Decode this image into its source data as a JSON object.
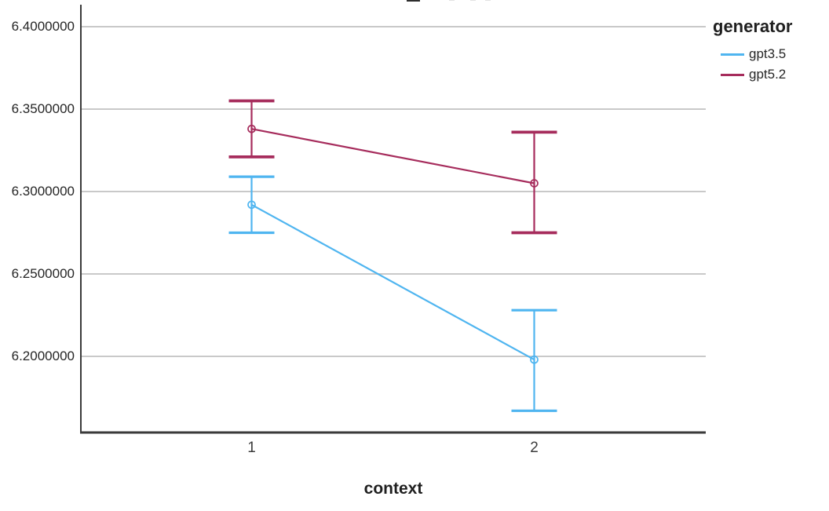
{
  "clipped_title": {
    "visible_fragment": "_"
  },
  "chart_data": {
    "type": "line",
    "subtype": "interaction-plot-with-error-bars",
    "xlabel": "context",
    "categories": [
      "1",
      "2"
    ],
    "y_axis": {
      "ticks": [
        {
          "label": "6.4000000",
          "value": 6.4
        },
        {
          "label": "6.3500000",
          "value": 6.35
        },
        {
          "label": "6.3000000",
          "value": 6.3
        },
        {
          "label": "6.2500000",
          "value": 6.25
        },
        {
          "label": "6.2000000",
          "value": 6.2
        }
      ],
      "range": [
        6.154,
        6.413
      ],
      "grid": true
    },
    "legend": {
      "title": "generator",
      "position": "right",
      "items": [
        "gpt3.5",
        "gpt5.2"
      ]
    },
    "series": [
      {
        "name": "gpt3.5",
        "color": "#4fb5f0",
        "marker": "open-circle",
        "means": [
          6.292,
          6.198
        ],
        "ci_low": [
          6.275,
          6.167
        ],
        "ci_high": [
          6.309,
          6.228
        ]
      },
      {
        "name": "gpt5.2",
        "color": "#a62c5c",
        "marker": "open-circle",
        "means": [
          6.338,
          6.305
        ],
        "ci_low": [
          6.321,
          6.275
        ],
        "ci_high": [
          6.355,
          6.336
        ]
      }
    ],
    "style": {
      "gridline_color": "#c9c9c9",
      "axis_color": "#3a3a3a",
      "text_color": "#262626",
      "background": "#ffffff"
    }
  }
}
